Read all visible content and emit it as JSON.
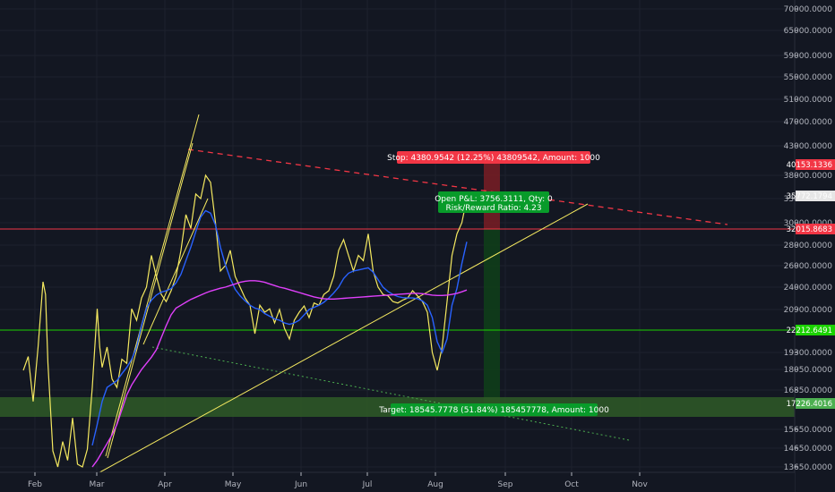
{
  "chart_data": {
    "type": "line",
    "x_labels": [
      "Feb",
      "Mar",
      "Apr",
      "May",
      "Jun",
      "Jul",
      "Aug",
      "Sep",
      "Oct",
      "Nov"
    ],
    "price_ticks": [
      "70000.0000",
      "65000.0000",
      "59000.0000",
      "55000.0000",
      "51000.0000",
      "47000.0000",
      "43000.0000",
      "38000.0000",
      "33000.0000",
      "30000.0000",
      "28000.0000",
      "26000.0000",
      "24000.0000",
      "20900.0000",
      "19300.0000",
      "18050.0000",
      "16850.0000",
      "15650.0000",
      "14650.0000",
      "13650.0000"
    ],
    "price_tags": [
      {
        "value": "40153.1336",
        "color": "#f23645",
        "text_color": "#ffffff"
      },
      {
        "value": "35772.1794",
        "color": "#e6e6e6",
        "text_color": "#131722"
      },
      {
        "value": "32015.8683",
        "color": "#f23645",
        "text_color": "#ffffff"
      },
      {
        "value": "22212.6491",
        "color": "#1bd200",
        "text_color": "#131722"
      },
      {
        "value": "17226.4016",
        "color": "#4caf50",
        "text_color": "#ffffff"
      }
    ],
    "stop_label": "Stop: 4380.9542 (12.25%) 43809542, Amount: 1000",
    "pnl_label_1": "Open P&L: 3756.3111, Qty: 0",
    "pnl_label_2": "Risk/Reward Ratio: 4.23",
    "target_label": "Target: 18545.7778 (51.84%) 185457778, Amount: 1000",
    "series": [
      {
        "color": "#f5e960",
        "values": [
          [
            0,
            18000
          ],
          [
            1,
            19000
          ],
          [
            2,
            16500
          ],
          [
            3,
            19500
          ],
          [
            4,
            24500
          ],
          [
            4.5,
            23000
          ],
          [
            5,
            18500
          ],
          [
            6,
            14500
          ],
          [
            7,
            13650
          ],
          [
            8,
            15000
          ],
          [
            9,
            14000
          ],
          [
            10,
            16000
          ],
          [
            11,
            13800
          ],
          [
            12,
            13650
          ],
          [
            13,
            14600
          ],
          [
            14,
            17000
          ],
          [
            15,
            21000
          ],
          [
            15.5,
            19500
          ],
          [
            16,
            18200
          ],
          [
            17,
            19500
          ],
          [
            18,
            17500
          ],
          [
            19,
            17000
          ],
          [
            20,
            18800
          ],
          [
            21,
            18500
          ],
          [
            22,
            21000
          ],
          [
            23,
            20500
          ],
          [
            24,
            22500
          ],
          [
            25,
            24000
          ],
          [
            26,
            27000
          ],
          [
            27,
            25000
          ],
          [
            28,
            23000
          ],
          [
            29,
            22000
          ],
          [
            30,
            23500
          ],
          [
            31,
            25000
          ],
          [
            32,
            27500
          ],
          [
            33,
            31000
          ],
          [
            34,
            29500
          ],
          [
            35,
            34000
          ],
          [
            36,
            33000
          ],
          [
            37,
            38000
          ],
          [
            38,
            36500
          ],
          [
            39,
            30000
          ],
          [
            40,
            25500
          ],
          [
            41,
            26000
          ],
          [
            42,
            27500
          ],
          [
            43,
            25000
          ],
          [
            44,
            24000
          ],
          [
            45,
            22500
          ],
          [
            46,
            21500
          ],
          [
            47,
            20000
          ],
          [
            48,
            21500
          ],
          [
            49,
            20800
          ],
          [
            50,
            21000
          ],
          [
            51,
            20400
          ],
          [
            52,
            20900
          ],
          [
            53,
            20200
          ],
          [
            54,
            19800
          ],
          [
            55,
            20500
          ],
          [
            56,
            20800
          ],
          [
            57,
            21400
          ],
          [
            58,
            20600
          ],
          [
            59,
            21800
          ],
          [
            60,
            21500
          ],
          [
            61,
            23000
          ],
          [
            62,
            23500
          ],
          [
            63,
            25000
          ],
          [
            64,
            27500
          ],
          [
            65,
            28500
          ],
          [
            66,
            27000
          ],
          [
            67,
            25500
          ],
          [
            68,
            27000
          ],
          [
            69,
            26500
          ],
          [
            70,
            29000
          ],
          [
            71,
            25500
          ],
          [
            72,
            24000
          ],
          [
            73,
            23000
          ],
          [
            74,
            22800
          ],
          [
            75,
            22000
          ],
          [
            76,
            21800
          ],
          [
            77,
            22200
          ],
          [
            78,
            22500
          ],
          [
            79,
            23500
          ],
          [
            80,
            22800
          ],
          [
            81,
            22000
          ],
          [
            82,
            20800
          ],
          [
            83,
            19300
          ],
          [
            84,
            18000
          ],
          [
            85,
            19500
          ],
          [
            86,
            22000
          ],
          [
            87,
            27000
          ],
          [
            88,
            29000
          ],
          [
            89,
            30000
          ],
          [
            90,
            33000
          ]
        ]
      },
      {
        "color": "#2962ff",
        "values": [
          [
            14,
            14800
          ],
          [
            15,
            15800
          ],
          [
            16,
            16500
          ],
          [
            17,
            17000
          ],
          [
            18,
            17200
          ],
          [
            19,
            17400
          ],
          [
            20,
            17800
          ],
          [
            21,
            18200
          ],
          [
            22,
            18800
          ],
          [
            23,
            19500
          ],
          [
            24,
            20300
          ],
          [
            25,
            21100
          ],
          [
            26,
            22200
          ],
          [
            27,
            22900
          ],
          [
            28,
            23300
          ],
          [
            29,
            23500
          ],
          [
            30,
            23800
          ],
          [
            31,
            24400
          ],
          [
            32,
            25200
          ],
          [
            33,
            26500
          ],
          [
            34,
            27800
          ],
          [
            35,
            29200
          ],
          [
            36,
            30700
          ],
          [
            37,
            31500
          ],
          [
            38,
            31200
          ],
          [
            39,
            29800
          ],
          [
            40,
            27800
          ],
          [
            41,
            26100
          ],
          [
            42,
            24800
          ],
          [
            43,
            23700
          ],
          [
            44,
            22800
          ],
          [
            45,
            22100
          ],
          [
            46,
            21500
          ],
          [
            47,
            21100
          ],
          [
            48,
            20900
          ],
          [
            49,
            20750
          ],
          [
            50,
            20650
          ],
          [
            51,
            20550
          ],
          [
            52,
            20500
          ],
          [
            53,
            20400
          ],
          [
            54,
            20350
          ],
          [
            55,
            20400
          ],
          [
            56,
            20500
          ],
          [
            57,
            20700
          ],
          [
            58,
            20900
          ],
          [
            59,
            21200
          ],
          [
            60,
            21500
          ],
          [
            61,
            21900
          ],
          [
            62,
            22500
          ],
          [
            63,
            23200
          ],
          [
            64,
            24000
          ],
          [
            65,
            24800
          ],
          [
            66,
            25300
          ],
          [
            67,
            25500
          ],
          [
            68,
            25600
          ],
          [
            69,
            25700
          ],
          [
            70,
            25800
          ],
          [
            71,
            25400
          ],
          [
            72,
            24700
          ],
          [
            73,
            24000
          ],
          [
            74,
            23400
          ],
          [
            75,
            23000
          ],
          [
            76,
            22700
          ],
          [
            77,
            22550
          ],
          [
            78,
            22500
          ],
          [
            79,
            22500
          ],
          [
            80,
            22400
          ],
          [
            81,
            22100
          ],
          [
            82,
            21500
          ],
          [
            83,
            20600
          ],
          [
            84,
            19700
          ],
          [
            85,
            19300
          ],
          [
            86,
            19800
          ],
          [
            87,
            21500
          ],
          [
            88,
            23800
          ],
          [
            89,
            26200
          ],
          [
            90,
            28300
          ]
        ]
      },
      {
        "color": "#e040fb",
        "values": [
          [
            14,
            13650
          ],
          [
            15,
            14000
          ],
          [
            16,
            14450
          ],
          [
            17,
            14900
          ],
          [
            18,
            15350
          ],
          [
            19,
            15800
          ],
          [
            20,
            16250
          ],
          [
            21,
            16700
          ],
          [
            22,
            17150
          ],
          [
            23,
            17600
          ],
          [
            24,
            18050
          ],
          [
            25,
            18500
          ],
          [
            26,
            18950
          ],
          [
            27,
            19400
          ],
          [
            28,
            19850
          ],
          [
            29,
            20300
          ],
          [
            30,
            20700
          ],
          [
            31,
            21100
          ],
          [
            32,
            21500
          ],
          [
            33,
            21900
          ],
          [
            34,
            22300
          ],
          [
            35,
            22600
          ],
          [
            36,
            22900
          ],
          [
            37,
            23200
          ],
          [
            38,
            23450
          ],
          [
            39,
            23650
          ],
          [
            40,
            23850
          ],
          [
            41,
            24000
          ],
          [
            42,
            24150
          ],
          [
            43,
            24300
          ],
          [
            44,
            24450
          ],
          [
            45,
            24550
          ],
          [
            46,
            24600
          ],
          [
            47,
            24600
          ],
          [
            48,
            24550
          ],
          [
            49,
            24450
          ],
          [
            50,
            24300
          ],
          [
            51,
            24150
          ],
          [
            52,
            24000
          ],
          [
            53,
            23850
          ],
          [
            54,
            23650
          ],
          [
            55,
            23450
          ],
          [
            56,
            23250
          ],
          [
            57,
            23050
          ],
          [
            58,
            22850
          ],
          [
            59,
            22650
          ],
          [
            60,
            22500
          ],
          [
            61,
            22400
          ],
          [
            62,
            22350
          ],
          [
            63,
            22350
          ],
          [
            64,
            22400
          ],
          [
            65,
            22450
          ],
          [
            66,
            22500
          ],
          [
            67,
            22550
          ],
          [
            68,
            22600
          ],
          [
            69,
            22650
          ],
          [
            70,
            22700
          ],
          [
            71,
            22750
          ],
          [
            72,
            22800
          ],
          [
            73,
            22850
          ],
          [
            74,
            22900
          ],
          [
            75,
            22950
          ],
          [
            76,
            23000
          ],
          [
            77,
            23050
          ],
          [
            78,
            23100
          ],
          [
            79,
            23150
          ],
          [
            80,
            23150
          ],
          [
            81,
            23100
          ],
          [
            82,
            23000
          ],
          [
            83,
            22900
          ],
          [
            84,
            22850
          ],
          [
            85,
            22850
          ],
          [
            86,
            22900
          ],
          [
            87,
            23000
          ],
          [
            88,
            23150
          ],
          [
            89,
            23350
          ],
          [
            90,
            23600
          ]
        ]
      }
    ]
  }
}
